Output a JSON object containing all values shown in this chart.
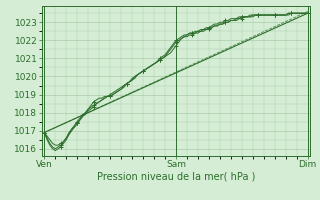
{
  "bg_color": "#d4edd4",
  "grid_color": "#aaccaa",
  "line_color": "#2d6e2d",
  "xlabel_text": "Pression niveau de la mer( hPa )",
  "x_tick_labels": [
    "Ven",
    "Sam",
    "Dim"
  ],
  "x_tick_positions": [
    0,
    48,
    96
  ],
  "ylim": [
    1015.6,
    1023.9
  ],
  "yticks": [
    1016,
    1017,
    1018,
    1019,
    1020,
    1021,
    1022,
    1023
  ],
  "xlim": [
    -1,
    97
  ],
  "n_points": 97,
  "series": [
    {
      "style": "line+marker",
      "data": [
        1016.9,
        1016.7,
        1016.5,
        1016.3,
        1016.2,
        1016.2,
        1016.3,
        1016.4,
        1016.6,
        1016.8,
        1017.1,
        1017.2,
        1017.4,
        1017.6,
        1017.8,
        1018.0,
        1018.2,
        1018.4,
        1018.6,
        1018.7,
        1018.8,
        1018.8,
        1018.9,
        1018.9,
        1019.0,
        1019.1,
        1019.2,
        1019.3,
        1019.4,
        1019.5,
        1019.6,
        1019.7,
        1019.8,
        1020.0,
        1020.1,
        1020.2,
        1020.3,
        1020.4,
        1020.5,
        1020.6,
        1020.7,
        1020.8,
        1020.9,
        1021.0,
        1021.1,
        1021.2,
        1021.3,
        1021.5,
        1021.7,
        1021.9,
        1022.1,
        1022.2,
        1022.3,
        1022.4,
        1022.4,
        1022.5,
        1022.5,
        1022.6,
        1022.6,
        1022.7,
        1022.7,
        1022.8,
        1022.9,
        1022.9,
        1023.0,
        1023.0,
        1023.1,
        1023.1,
        1023.2,
        1023.2,
        1023.2,
        1023.3,
        1023.3,
        1023.3,
        1023.3,
        1023.3,
        1023.3,
        1023.4,
        1023.4,
        1023.4,
        1023.4,
        1023.4,
        1023.4,
        1023.4,
        1023.4,
        1023.4,
        1023.4,
        1023.4,
        1023.4,
        1023.4,
        1023.5,
        1023.5,
        1023.5,
        1023.5,
        1023.5,
        1023.5,
        1023.5
      ]
    },
    {
      "style": "line+marker",
      "data": [
        1016.9,
        1016.6,
        1016.3,
        1016.1,
        1016.0,
        1016.1,
        1016.2,
        1016.4,
        1016.6,
        1016.9,
        1017.1,
        1017.3,
        1017.5,
        1017.7,
        1017.9,
        1018.0,
        1018.2,
        1018.3,
        1018.4,
        1018.5,
        1018.6,
        1018.7,
        1018.8,
        1018.9,
        1018.9,
        1019.0,
        1019.1,
        1019.2,
        1019.3,
        1019.5,
        1019.6,
        1019.7,
        1019.9,
        1020.0,
        1020.1,
        1020.2,
        1020.3,
        1020.4,
        1020.5,
        1020.6,
        1020.7,
        1020.8,
        1021.0,
        1021.1,
        1021.2,
        1021.4,
        1021.6,
        1021.8,
        1022.0,
        1022.1,
        1022.2,
        1022.3,
        1022.3,
        1022.4,
        1022.4,
        1022.4,
        1022.5,
        1022.5,
        1022.6,
        1022.6,
        1022.7,
        1022.7,
        1022.8,
        1022.8,
        1022.9,
        1022.9,
        1023.0,
        1023.0,
        1023.1,
        1023.1,
        1023.2,
        1023.2,
        1023.3,
        1023.3,
        1023.3,
        1023.4,
        1023.4,
        1023.4,
        1023.4,
        1023.4,
        1023.4,
        1023.4,
        1023.4,
        1023.4,
        1023.4,
        1023.4,
        1023.4,
        1023.4,
        1023.4,
        1023.5,
        1023.5,
        1023.5,
        1023.5,
        1023.5,
        1023.5,
        1023.5,
        1023.5
      ]
    },
    {
      "style": "line+marker",
      "data": [
        1016.9,
        1016.5,
        1016.2,
        1016.0,
        1015.9,
        1016.0,
        1016.1,
        1016.3,
        1016.5,
        1016.8,
        1017.0,
        1017.2,
        1017.4,
        1017.6,
        1017.8,
        1017.9,
        1018.1,
        1018.2,
        1018.3,
        1018.5,
        1018.6,
        1018.7,
        1018.8,
        1018.9,
        1018.9,
        1019.0,
        1019.1,
        1019.2,
        1019.3,
        1019.4,
        1019.6,
        1019.7,
        1019.8,
        1019.9,
        1020.1,
        1020.2,
        1020.3,
        1020.4,
        1020.5,
        1020.6,
        1020.7,
        1020.8,
        1020.9,
        1021.0,
        1021.1,
        1021.3,
        1021.5,
        1021.7,
        1021.9,
        1022.0,
        1022.1,
        1022.2,
        1022.2,
        1022.3,
        1022.3,
        1022.4,
        1022.4,
        1022.5,
        1022.5,
        1022.6,
        1022.6,
        1022.7,
        1022.8,
        1022.8,
        1022.9,
        1022.9,
        1023.0,
        1023.0,
        1023.1,
        1023.1,
        1023.1,
        1023.2,
        1023.2,
        1023.3,
        1023.3,
        1023.3,
        1023.4,
        1023.4,
        1023.4,
        1023.4,
        1023.4,
        1023.4,
        1023.4,
        1023.4,
        1023.4,
        1023.4,
        1023.4,
        1023.4,
        1023.4,
        1023.5,
        1023.5,
        1023.5,
        1023.5,
        1023.5,
        1023.5,
        1023.5,
        1023.5
      ]
    },
    {
      "style": "trend",
      "data": [
        1016.9,
        1023.5
      ]
    },
    {
      "style": "trend2",
      "data": [
        1016.9,
        1023.6
      ]
    }
  ]
}
